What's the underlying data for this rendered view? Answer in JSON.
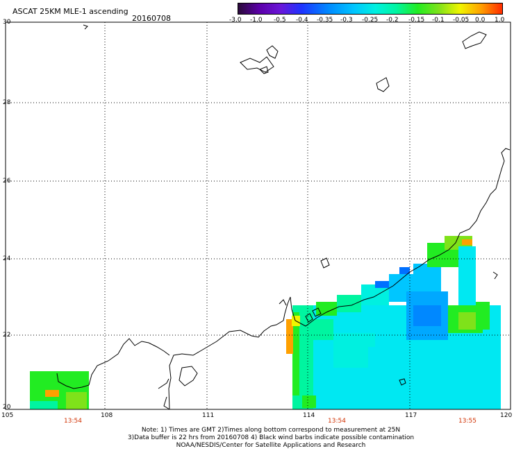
{
  "header": {
    "title": "ASCAT 25KM MLE-1 ascending",
    "date": "20160708"
  },
  "colorbar": {
    "ticks": [
      "-3.0",
      "-1.0",
      "-0.5",
      "-0.4",
      "-0.35",
      "-0.3",
      "-0.25",
      "-0.2",
      "-0.15",
      "-0.1",
      "-0.05",
      "0.0",
      "1.0"
    ],
    "colors": [
      "#2a0a3a",
      "#5b00a8",
      "#1e33ff",
      "#0088ff",
      "#00c6ff",
      "#00f0e0",
      "#00f5a0",
      "#22ec22",
      "#7fe21a",
      "#f0f500",
      "#ffa000",
      "#ff2b00"
    ]
  },
  "map": {
    "lat_labels": [
      "30",
      "28",
      "26",
      "24",
      "22",
      "20"
    ],
    "lon_labels": [
      "105",
      "108",
      "111",
      "114",
      "117",
      "120"
    ],
    "pass_times": [
      "13:54",
      "13:54",
      "13:55"
    ],
    "colors": {
      "background": "#ffffff",
      "grid": "#000000",
      "coast": "#000000",
      "time_label": "#d03000"
    }
  },
  "notes": {
    "line1": "Note: 1) Times are GMT 2)Times along bottom correspond to measurement at 25N",
    "line2": "3)Data buffer is 22 hrs from 20160708 4) Black wind barbs indicate possible contamination",
    "line3": "NOAA/NESDIS/Center for Satellite Applications and Research"
  }
}
